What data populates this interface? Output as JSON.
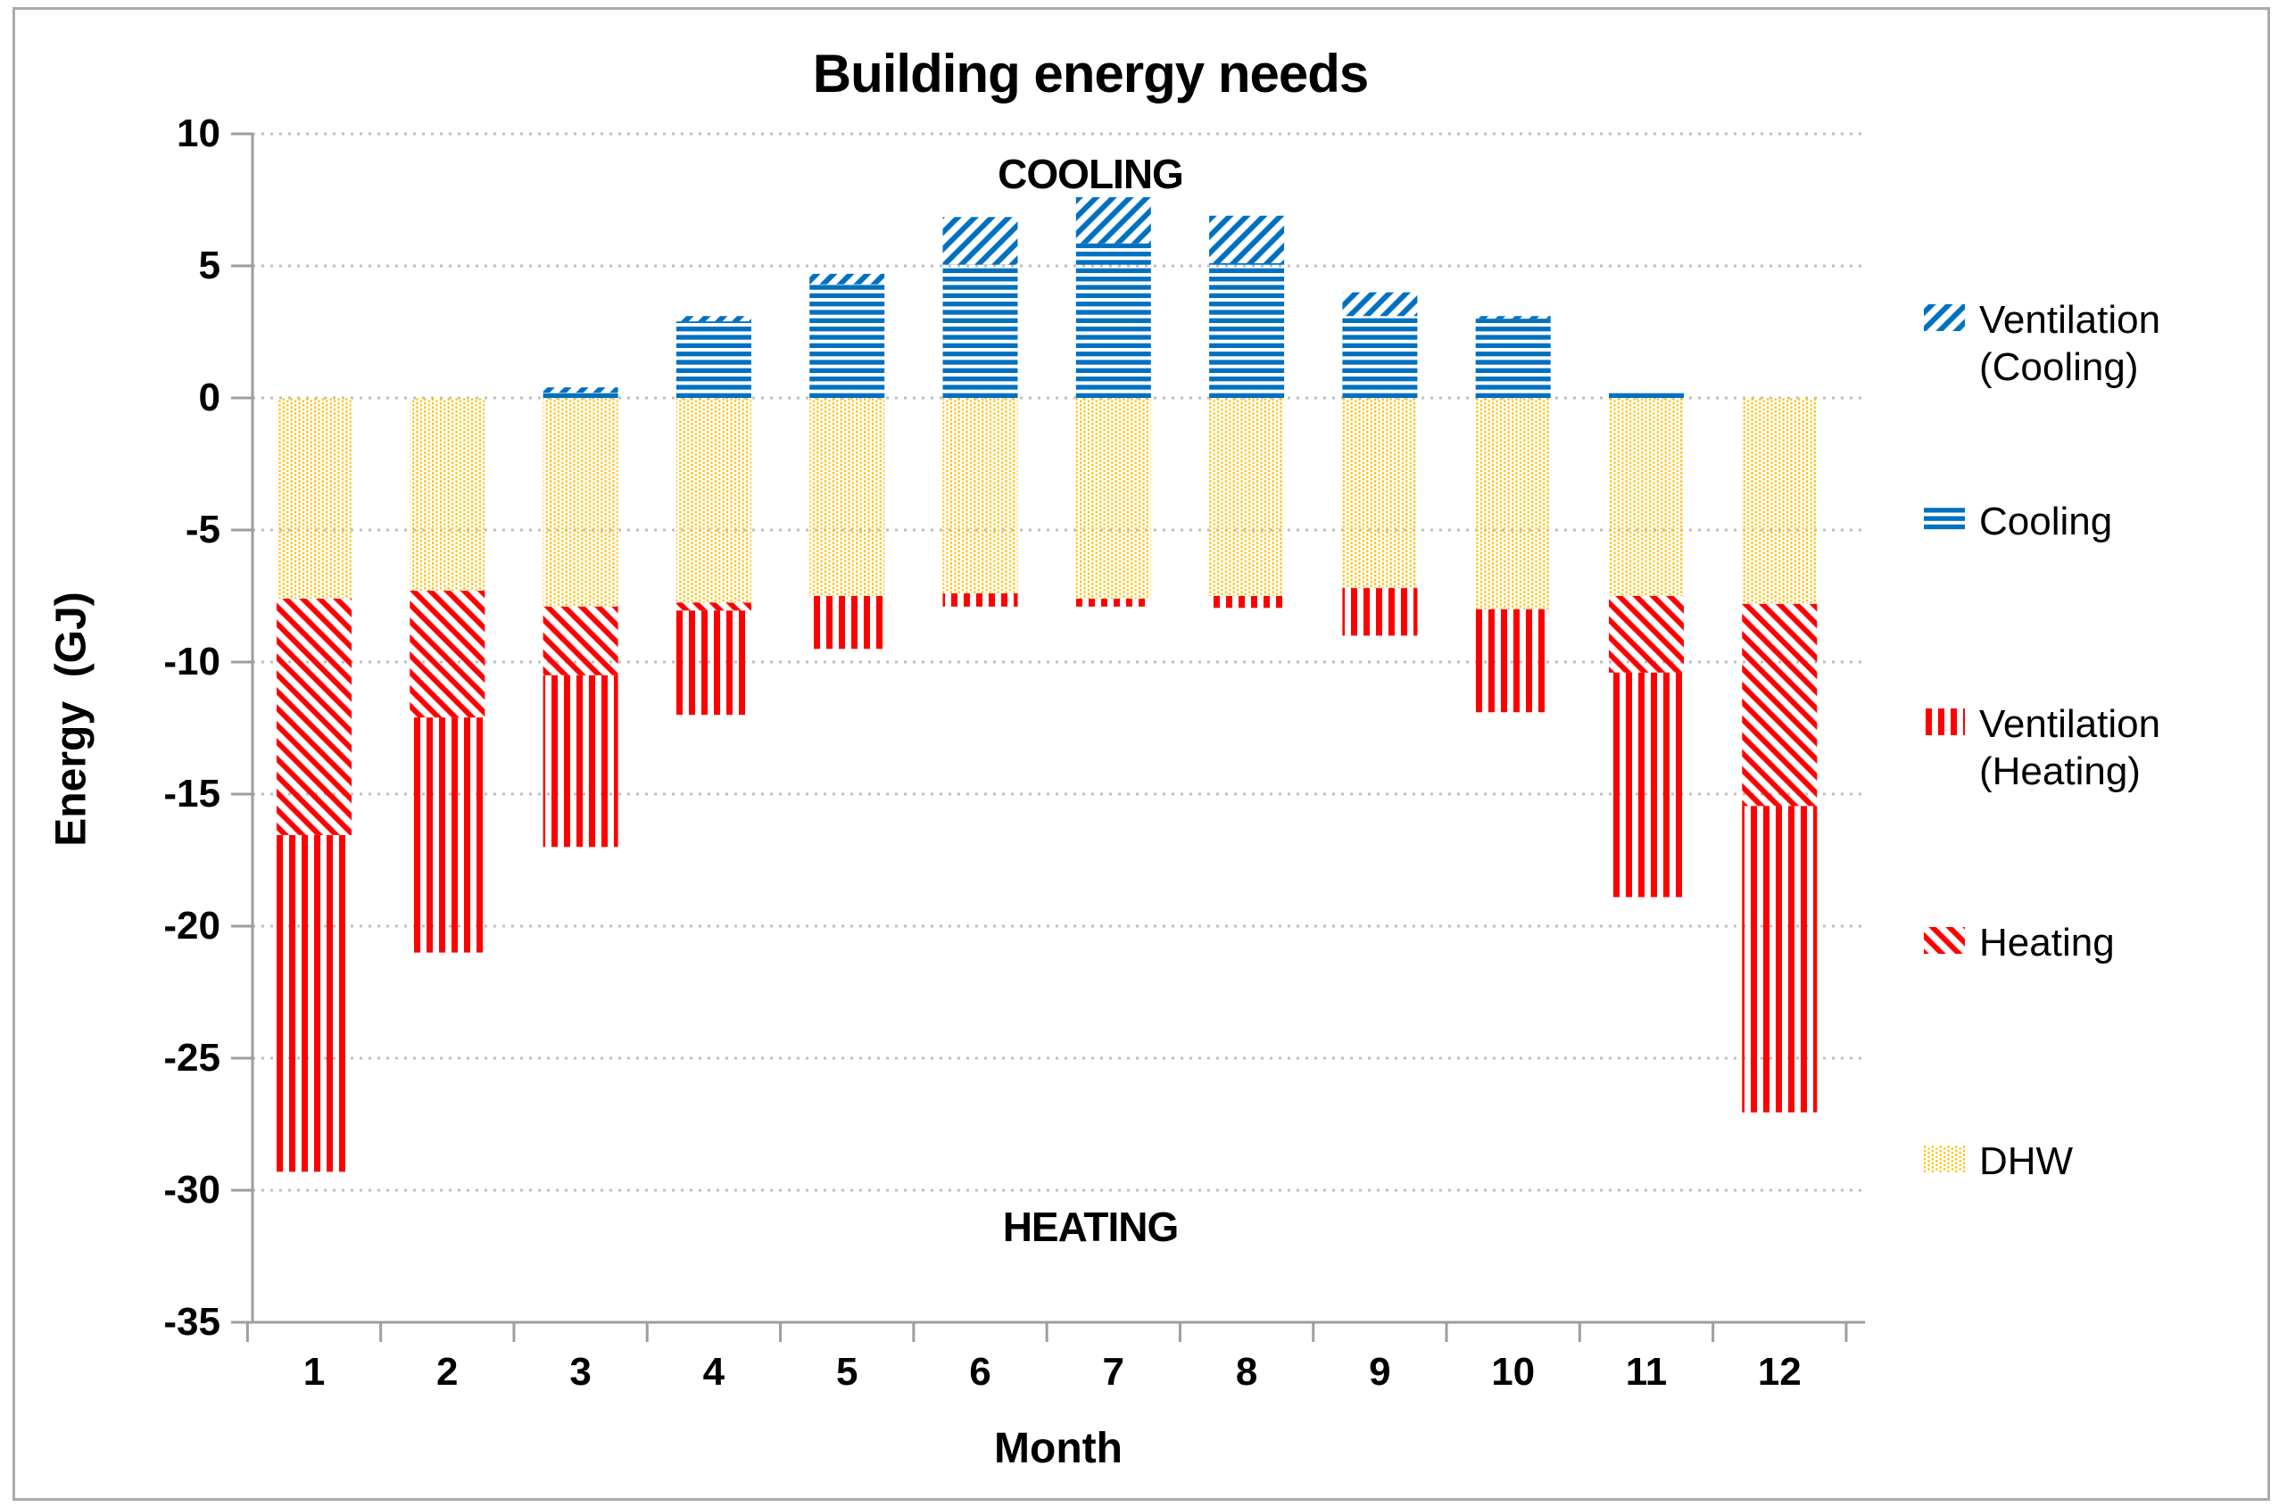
{
  "title": "Building energy needs",
  "annotations": {
    "cooling_zone": "COOLING",
    "heating_zone": "HEATING"
  },
  "axes": {
    "y_title": "Energy  (GJ)",
    "x_title": "Month",
    "y_ticks": [
      10,
      5,
      0,
      -5,
      -10,
      -15,
      -20,
      -25,
      -30,
      -35
    ],
    "x_ticks": [
      "1",
      "2",
      "3",
      "4",
      "5",
      "6",
      "7",
      "8",
      "9",
      "10",
      "11",
      "12"
    ]
  },
  "legend": [
    {
      "label": "Ventilation (Cooling)",
      "pattern": "diag-up",
      "color": "#0070C0"
    },
    {
      "label": "Cooling",
      "pattern": "horizontal",
      "color": "#0070C0"
    },
    {
      "label": "Ventilation (Heating)",
      "pattern": "vertical",
      "color": "#FF0000"
    },
    {
      "label": "Heating",
      "pattern": "diag-down",
      "color": "#FF0000"
    },
    {
      "label": "DHW",
      "pattern": "dots",
      "color": "#FFC000"
    }
  ],
  "colors": {
    "cooling_blue": "#0070C0",
    "heating_red": "#FF0000",
    "dhw_gold": "#FFC000",
    "gridline": "#BFBFBF",
    "axis": "#9E9E9E",
    "text": "#000000"
  },
  "chart_data": {
    "type": "bar",
    "stacked": true,
    "unit": "GJ",
    "title": "Building energy needs",
    "xlabel": "Month",
    "ylabel": "Energy (GJ)",
    "ylim": [
      -35,
      10
    ],
    "grid": true,
    "legend_position": "right",
    "categories": [
      1,
      2,
      3,
      4,
      5,
      6,
      7,
      8,
      9,
      10,
      11,
      12
    ],
    "series": [
      {
        "name": "Ventilation (Cooling)",
        "pattern": "diag-up",
        "color": "#0070C0",
        "values": [
          0,
          0,
          0.2,
          0.2,
          0.4,
          1.8,
          1.75,
          1.8,
          0.9,
          0.1,
          0,
          0
        ]
      },
      {
        "name": "Cooling",
        "pattern": "horizontal",
        "color": "#0070C0",
        "values": [
          0,
          0,
          0.2,
          2.9,
          4.3,
          5.05,
          5.85,
          5.1,
          3.1,
          3.0,
          0.2,
          0
        ]
      },
      {
        "name": "Ventilation (Heating)",
        "pattern": "vertical",
        "color": "#FF0000",
        "values": [
          -12.75,
          -8.9,
          -6.5,
          -3.95,
          -2.0,
          -0.5,
          -0.3,
          -0.45,
          -1.8,
          -3.9,
          -8.5,
          -11.6
        ]
      },
      {
        "name": "Heating",
        "pattern": "diag-down",
        "color": "#FF0000",
        "values": [
          -8.95,
          -4.8,
          -2.6,
          -0.3,
          0,
          0,
          0,
          0,
          0,
          0,
          -2.9,
          -7.65
        ]
      },
      {
        "name": "DHW",
        "pattern": "dots",
        "color": "#FFC000",
        "values": [
          -7.6,
          -7.3,
          -7.9,
          -7.75,
          -7.5,
          -7.4,
          -7.6,
          -7.5,
          -7.2,
          -8.0,
          -7.5,
          -7.8
        ]
      }
    ],
    "stack_order_positive": [
      "Cooling",
      "Ventilation (Cooling)"
    ],
    "stack_order_negative": [
      "DHW",
      "Heating",
      "Ventilation (Heating)"
    ]
  }
}
